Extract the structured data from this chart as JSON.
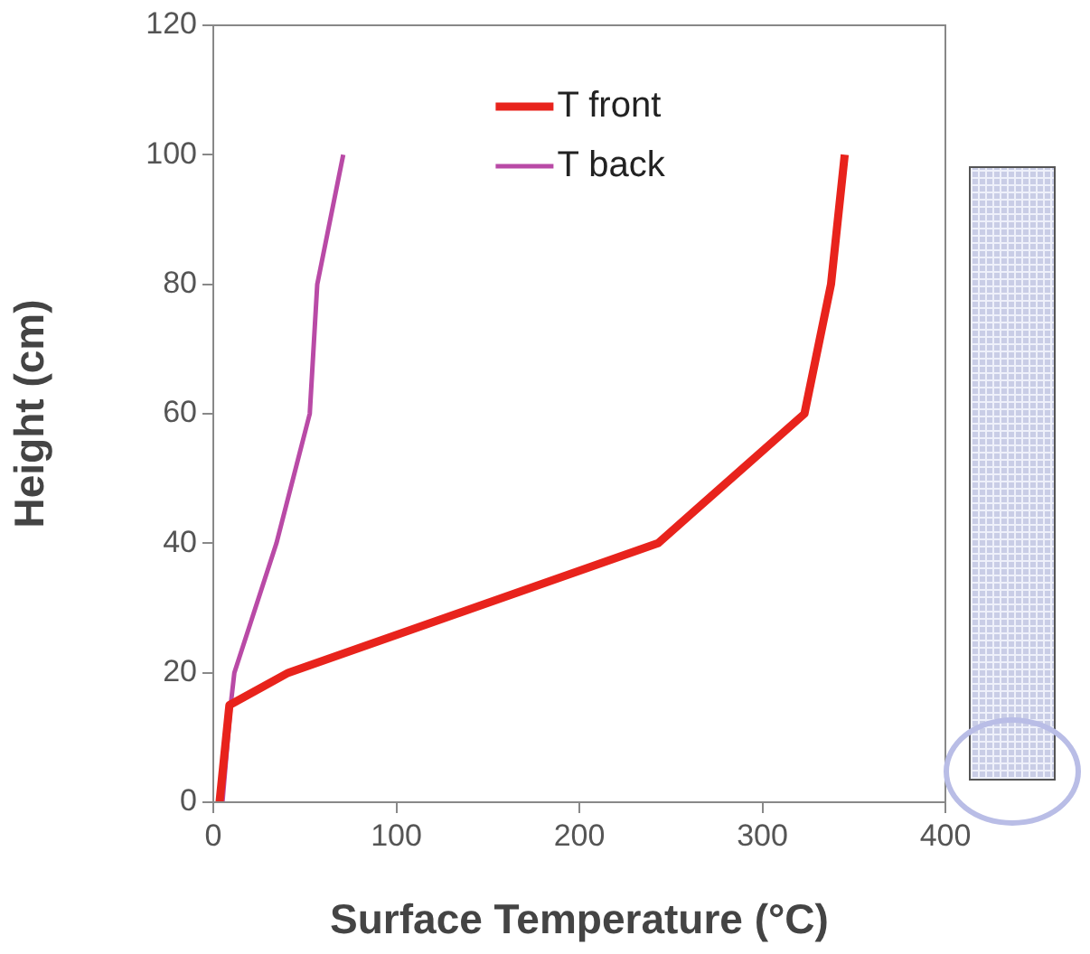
{
  "chart_data": {
    "type": "line",
    "xlabel": "Surface Temperature (°C)",
    "ylabel": "Height (cm)",
    "xlim": [
      0,
      400
    ],
    "xticks": [
      0,
      100,
      200,
      300,
      400
    ],
    "ylim": [
      0,
      120
    ],
    "yticks": [
      0,
      20,
      40,
      60,
      80,
      100,
      120
    ],
    "grid": false,
    "legend": "top",
    "marker": "none",
    "line_style": "solid",
    "series": [
      {
        "name": "T front",
        "color": "#e8231c",
        "x": [
          3.4,
          8.8,
          41,
          243,
          323,
          337.5,
          345
        ],
        "values": [
          0,
          15,
          20,
          40,
          60,
          80,
          100
        ]
      },
      {
        "name": "T back",
        "color": "#b94aa6",
        "x": [
          5,
          9.5,
          11.5,
          34.5,
          52.7,
          56.8,
          71
        ],
        "values": [
          0,
          15,
          20,
          40,
          60,
          80,
          100
        ]
      }
    ]
  }
}
